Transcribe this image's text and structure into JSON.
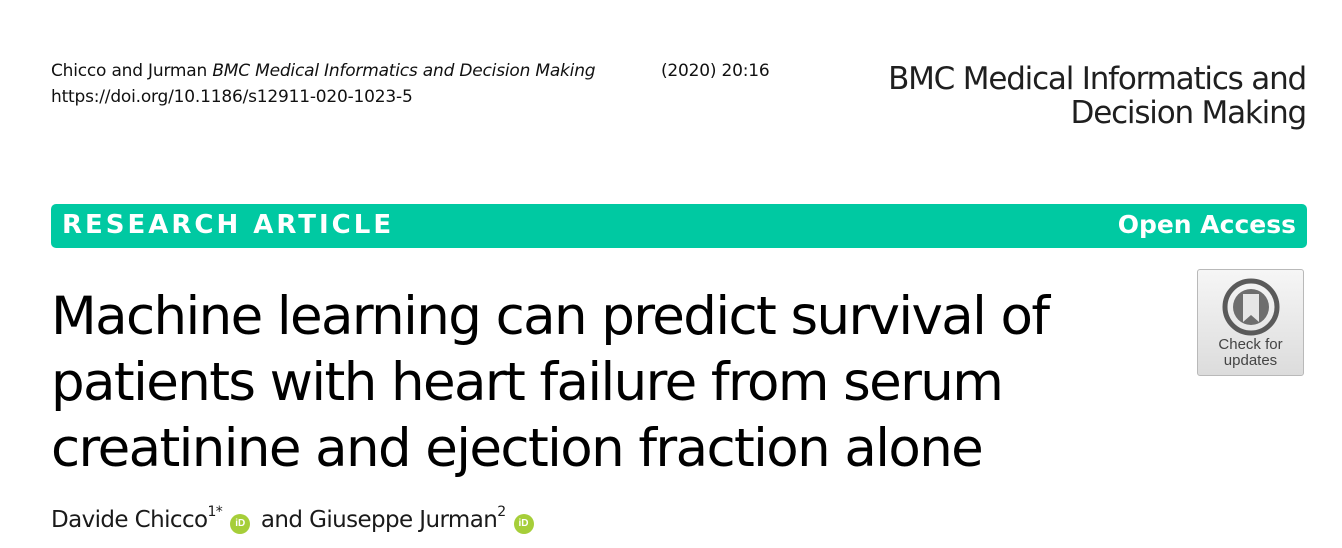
{
  "citation": {
    "authors": "Chicco and Jurman",
    "journal": "BMC Medical Informatics and Decision Making",
    "year_volume": "(2020) 20:16",
    "doi": "https://doi.org/10.1186/s12911-020-1023-5"
  },
  "journal_logo": {
    "line1": "BMC Medical Informatics and",
    "line2": "Decision Making"
  },
  "banner": {
    "article_type": "RESEARCH ARTICLE",
    "access": "Open Access",
    "color": "#00c9a2"
  },
  "title": {
    "line1": "Machine learning can predict survival of",
    "line2": "patients with heart failure from serum",
    "line3": "creatinine and ejection fraction alone"
  },
  "check_updates": {
    "line1": "Check for",
    "line2": "updates"
  },
  "authors": [
    {
      "name": "Davide Chicco",
      "sup": "1*",
      "icon": "orcid-icon"
    },
    {
      "name": "Giuseppe Jurman",
      "sup": "2",
      "icon": "orcid-icon"
    }
  ],
  "authors_joiner": "and",
  "orcid_label": "iD",
  "colors": {
    "orcid": "#a6ce39",
    "banner_text": "#ffffff"
  }
}
